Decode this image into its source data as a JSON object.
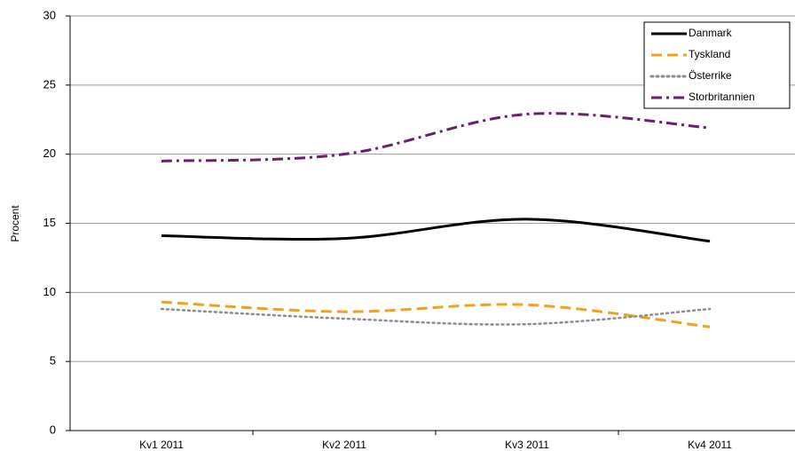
{
  "chart_data": {
    "type": "line",
    "y_label": "Procent",
    "categories": [
      "Kv1 2011",
      "Kv2 2011",
      "Kv3 2011",
      "Kv4 2011"
    ],
    "series": [
      {
        "name": "Danmark",
        "color": "#000000",
        "dash": "solid",
        "values": [
          14.1,
          13.9,
          15.3,
          13.7
        ]
      },
      {
        "name": "Tyskland",
        "color": "#f5a01a",
        "dash": "dash",
        "values": [
          9.3,
          8.6,
          9.1,
          7.5
        ]
      },
      {
        "name": "Österrike",
        "color": "#8c8c8c",
        "dash": "dot",
        "values": [
          8.8,
          8.1,
          7.7,
          8.8
        ]
      },
      {
        "name": "Storbritannien",
        "color": "#6a1f6a",
        "dash": "dashdot",
        "values": [
          19.5,
          20.0,
          22.9,
          21.9
        ]
      }
    ],
    "ylim": [
      0,
      30
    ],
    "yticks": [
      0,
      5,
      10,
      15,
      20,
      25,
      30
    ],
    "grid": true,
    "legend": "top-right"
  }
}
